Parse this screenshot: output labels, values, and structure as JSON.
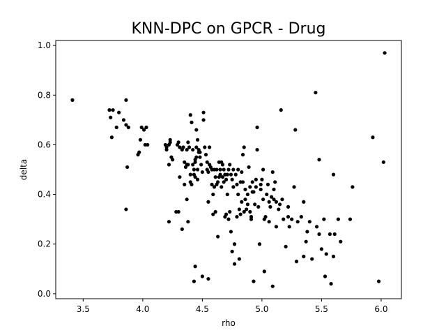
{
  "chart_data": {
    "type": "scatter",
    "title": "KNN-DPC on GPCR - Drug",
    "xlabel": "rho",
    "ylabel": "delta",
    "xlim": [
      3.27,
      6.17
    ],
    "ylim": [
      -0.02,
      1.02
    ],
    "xticks": [
      "3.5",
      "4.0",
      "4.5",
      "5.0",
      "5.5",
      "6.0"
    ],
    "yticks": [
      "0.0",
      "0.2",
      "0.4",
      "0.6",
      "0.8",
      "1.0"
    ],
    "grid": false,
    "marker_color": "#000000",
    "points": [
      [
        3.41,
        0.78
      ],
      [
        3.72,
        0.74
      ],
      [
        3.73,
        0.71
      ],
      [
        3.75,
        0.74
      ],
      [
        3.74,
        0.63
      ],
      [
        3.78,
        0.67
      ],
      [
        3.8,
        0.73
      ],
      [
        3.84,
        0.7
      ],
      [
        3.86,
        0.68
      ],
      [
        3.86,
        0.78
      ],
      [
        3.87,
        0.51
      ],
      [
        3.88,
        0.67
      ],
      [
        3.86,
        0.34
      ],
      [
        3.96,
        0.56
      ],
      [
        3.97,
        0.57
      ],
      [
        3.98,
        0.62
      ],
      [
        3.99,
        0.67
      ],
      [
        4.01,
        0.66
      ],
      [
        4.02,
        0.6
      ],
      [
        4.03,
        0.67
      ],
      [
        4.04,
        0.6
      ],
      [
        4.19,
        0.6
      ],
      [
        4.2,
        0.59
      ],
      [
        4.2,
        0.58
      ],
      [
        4.22,
        0.6
      ],
      [
        4.23,
        0.61
      ],
      [
        4.23,
        0.62
      ],
      [
        4.22,
        0.52
      ],
      [
        4.24,
        0.55
      ],
      [
        4.25,
        0.54
      ],
      [
        4.22,
        0.29
      ],
      [
        4.28,
        0.33
      ],
      [
        4.3,
        0.33
      ],
      [
        4.29,
        0.6
      ],
      [
        4.3,
        0.61
      ],
      [
        4.31,
        0.59
      ],
      [
        4.31,
        0.47
      ],
      [
        4.33,
        0.26
      ],
      [
        4.33,
        0.58
      ],
      [
        4.34,
        0.59
      ],
      [
        4.35,
        0.53
      ],
      [
        4.35,
        0.44
      ],
      [
        4.36,
        0.51
      ],
      [
        4.37,
        0.52
      ],
      [
        4.37,
        0.58
      ],
      [
        4.37,
        0.38
      ],
      [
        4.38,
        0.29
      ],
      [
        4.38,
        0.61
      ],
      [
        4.38,
        0.52
      ],
      [
        4.39,
        0.59
      ],
      [
        4.4,
        0.72
      ],
      [
        4.4,
        0.48
      ],
      [
        4.4,
        0.45
      ],
      [
        4.41,
        0.69
      ],
      [
        4.41,
        0.44
      ],
      [
        4.42,
        0.58
      ],
      [
        4.42,
        0.52
      ],
      [
        4.43,
        0.5
      ],
      [
        4.43,
        0.48
      ],
      [
        4.43,
        0.05
      ],
      [
        4.44,
        0.11
      ],
      [
        4.44,
        0.54
      ],
      [
        4.44,
        0.53
      ],
      [
        4.44,
        0.47
      ],
      [
        4.45,
        0.55
      ],
      [
        4.45,
        0.59
      ],
      [
        4.45,
        0.66
      ],
      [
        4.46,
        0.62
      ],
      [
        4.46,
        0.5
      ],
      [
        4.46,
        0.46
      ],
      [
        4.47,
        0.58
      ],
      [
        4.47,
        0.57
      ],
      [
        4.48,
        0.57
      ],
      [
        4.48,
        0.55
      ],
      [
        4.49,
        0.52
      ],
      [
        4.5,
        0.49
      ],
      [
        4.5,
        0.07
      ],
      [
        4.51,
        0.73
      ],
      [
        4.51,
        0.7
      ],
      [
        4.52,
        0.59
      ],
      [
        4.53,
        0.56
      ],
      [
        4.54,
        0.5
      ],
      [
        4.54,
        0.53
      ],
      [
        4.55,
        0.49
      ],
      [
        4.55,
        0.37
      ],
      [
        4.55,
        0.06
      ],
      [
        4.56,
        0.59
      ],
      [
        4.56,
        0.52
      ],
      [
        4.57,
        0.51
      ],
      [
        4.58,
        0.44
      ],
      [
        4.58,
        0.5
      ],
      [
        4.59,
        0.4
      ],
      [
        4.59,
        0.32
      ],
      [
        4.6,
        0.5
      ],
      [
        4.6,
        0.43
      ],
      [
        4.61,
        0.47
      ],
      [
        4.61,
        0.33
      ],
      [
        4.62,
        0.5
      ],
      [
        4.62,
        0.44
      ],
      [
        4.63,
        0.45
      ],
      [
        4.63,
        0.23
      ],
      [
        4.64,
        0.53
      ],
      [
        4.64,
        0.47
      ],
      [
        4.65,
        0.5
      ],
      [
        4.65,
        0.48
      ],
      [
        4.66,
        0.53
      ],
      [
        4.66,
        0.43
      ],
      [
        4.67,
        0.52
      ],
      [
        4.67,
        0.47
      ],
      [
        4.68,
        0.5
      ],
      [
        4.68,
        0.45
      ],
      [
        4.69,
        0.48
      ],
      [
        4.69,
        0.31
      ],
      [
        4.7,
        0.46
      ],
      [
        4.7,
        0.32
      ],
      [
        4.71,
        0.48
      ],
      [
        4.71,
        0.4
      ],
      [
        4.72,
        0.5
      ],
      [
        4.72,
        0.3
      ],
      [
        4.73,
        0.52
      ],
      [
        4.73,
        0.33
      ],
      [
        4.74,
        0.48
      ],
      [
        4.74,
        0.25
      ],
      [
        4.75,
        0.46
      ],
      [
        4.75,
        0.17
      ],
      [
        4.76,
        0.43
      ],
      [
        4.76,
        0.5
      ],
      [
        4.77,
        0.2
      ],
      [
        4.77,
        0.12
      ],
      [
        4.78,
        0.48
      ],
      [
        4.79,
        0.44
      ],
      [
        4.79,
        0.31
      ],
      [
        4.8,
        0.5
      ],
      [
        4.8,
        0.4
      ],
      [
        4.81,
        0.34
      ],
      [
        4.81,
        0.14
      ],
      [
        4.82,
        0.45
      ],
      [
        4.82,
        0.32
      ],
      [
        4.83,
        0.49
      ],
      [
        4.83,
        0.37
      ],
      [
        4.84,
        0.45
      ],
      [
        4.84,
        0.56
      ],
      [
        4.85,
        0.59
      ],
      [
        4.85,
        0.33
      ],
      [
        4.86,
        0.42
      ],
      [
        4.86,
        0.38
      ],
      [
        4.87,
        0.34
      ],
      [
        4.88,
        0.4
      ],
      [
        4.88,
        0.36
      ],
      [
        4.89,
        0.51
      ],
      [
        4.9,
        0.43
      ],
      [
        4.9,
        0.33
      ],
      [
        4.91,
        0.3
      ],
      [
        4.91,
        0.31
      ],
      [
        4.92,
        0.45
      ],
      [
        4.92,
        0.41
      ],
      [
        4.93,
        0.41
      ],
      [
        4.93,
        0.05
      ],
      [
        4.94,
        0.36
      ],
      [
        4.95,
        0.46
      ],
      [
        4.95,
        0.43
      ],
      [
        4.96,
        0.67
      ],
      [
        4.96,
        0.58
      ],
      [
        4.97,
        0.35
      ],
      [
        4.98,
        0.2
      ],
      [
        4.99,
        0.42
      ],
      [
        4.99,
        0.44
      ],
      [
        5.0,
        0.46
      ],
      [
        5.01,
        0.5
      ],
      [
        5.01,
        0.38
      ],
      [
        5.02,
        0.09
      ],
      [
        5.02,
        0.3
      ],
      [
        5.03,
        0.31
      ],
      [
        5.04,
        0.4
      ],
      [
        5.05,
        0.44
      ],
      [
        5.06,
        0.37
      ],
      [
        5.06,
        0.29
      ],
      [
        5.07,
        0.35
      ],
      [
        5.08,
        0.39
      ],
      [
        5.09,
        0.49
      ],
      [
        5.09,
        0.03
      ],
      [
        5.1,
        0.38
      ],
      [
        5.1,
        0.42
      ],
      [
        5.11,
        0.45
      ],
      [
        5.12,
        0.37
      ],
      [
        5.12,
        0.27
      ],
      [
        5.14,
        0.34
      ],
      [
        5.15,
        0.36
      ],
      [
        5.16,
        0.74
      ],
      [
        5.17,
        0.38
      ],
      [
        5.18,
        0.3
      ],
      [
        5.2,
        0.19
      ],
      [
        5.22,
        0.35
      ],
      [
        5.22,
        0.31
      ],
      [
        5.23,
        0.27
      ],
      [
        5.25,
        0.3
      ],
      [
        5.27,
        0.43
      ],
      [
        5.28,
        0.66
      ],
      [
        5.29,
        0.13
      ],
      [
        5.3,
        0.29
      ],
      [
        5.33,
        0.31
      ],
      [
        5.35,
        0.37
      ],
      [
        5.35,
        0.15
      ],
      [
        5.37,
        0.21
      ],
      [
        5.38,
        0.25
      ],
      [
        5.4,
        0.29
      ],
      [
        5.42,
        0.14
      ],
      [
        5.45,
        0.81
      ],
      [
        5.46,
        0.27
      ],
      [
        5.48,
        0.54
      ],
      [
        5.48,
        0.24
      ],
      [
        5.5,
        0.18
      ],
      [
        5.52,
        0.3
      ],
      [
        5.53,
        0.07
      ],
      [
        5.54,
        0.16
      ],
      [
        5.57,
        0.24
      ],
      [
        5.58,
        0.04
      ],
      [
        5.6,
        0.48
      ],
      [
        5.6,
        0.15
      ],
      [
        5.61,
        0.24
      ],
      [
        5.64,
        0.3
      ],
      [
        5.66,
        0.21
      ],
      [
        5.74,
        0.3
      ],
      [
        5.76,
        0.43
      ],
      [
        5.93,
        0.63
      ],
      [
        5.98,
        0.05
      ],
      [
        6.02,
        0.53
      ],
      [
        6.03,
        0.97
      ]
    ]
  }
}
